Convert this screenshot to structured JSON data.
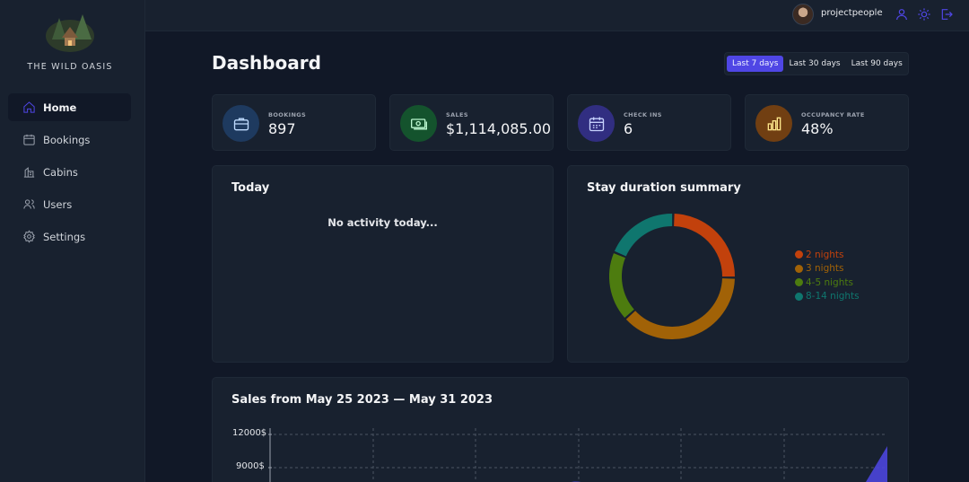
{
  "app": {
    "logo_text": "THE WILD OASIS"
  },
  "sidebar": {
    "items": [
      {
        "label": "Home",
        "icon": "home-icon",
        "active": true
      },
      {
        "label": "Bookings",
        "icon": "calendar-icon",
        "active": false
      },
      {
        "label": "Cabins",
        "icon": "cabin-icon",
        "active": false
      },
      {
        "label": "Users",
        "icon": "users-icon",
        "active": false
      },
      {
        "label": "Settings",
        "icon": "gear-icon",
        "active": false
      }
    ]
  },
  "header": {
    "username": "projectpeople",
    "icons": [
      "user-icon",
      "sun-icon",
      "logout-icon"
    ]
  },
  "page": {
    "title": "Dashboard"
  },
  "filter": {
    "options": [
      "Last 7 days",
      "Last 30 days",
      "Last 90 days"
    ],
    "selected": "Last 7 days"
  },
  "stats": [
    {
      "label": "BOOKINGS",
      "value": "897",
      "icon": "briefcase-icon",
      "color": "#1e3a5f"
    },
    {
      "label": "SALES",
      "value": "$1,114,085.00",
      "icon": "banknotes-icon",
      "color": "#14532d"
    },
    {
      "label": "CHECK INS",
      "value": "6",
      "icon": "calendar-days-icon",
      "color": "#312e81"
    },
    {
      "label": "OCCUPANCY RATE",
      "value": "48%",
      "icon": "chart-bar-icon",
      "color": "#713f12"
    }
  ],
  "today": {
    "title": "Today",
    "empty_text": "No activity today..."
  },
  "stay_duration": {
    "title": "Stay duration summary"
  },
  "sales": {
    "title": "Sales from May 25 2023 — May 31 2023",
    "y_ticks": [
      "12000$",
      "9000$"
    ]
  },
  "chart_data": {
    "type": "pie",
    "categories": [
      "2 nights",
      "3 nights",
      "4-5 nights",
      "8-14 nights"
    ],
    "values": [
      25,
      38,
      18,
      19
    ],
    "colors": [
      "#c2410c",
      "#a16207",
      "#4d7c0f",
      "#0f766e"
    ],
    "legend": "right"
  },
  "colors": {
    "accent": "#4f46e5",
    "background": "#111827",
    "panel": "#18212f"
  }
}
